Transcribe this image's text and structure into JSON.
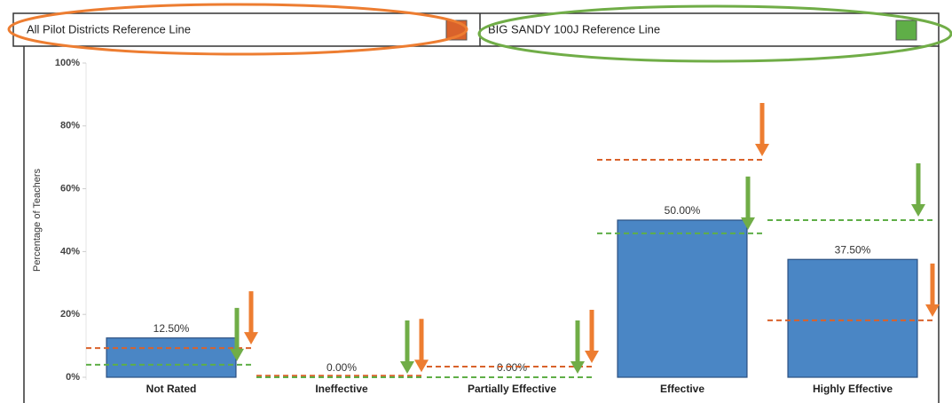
{
  "chart_data": {
    "type": "bar",
    "y_label": "Percentage of Teachers",
    "categories": [
      "Not Rated",
      "Ineffective",
      "Partially Effective",
      "Effective",
      "Highly Effective"
    ],
    "values": [
      12.5,
      0,
      0,
      50,
      37.5
    ],
    "value_labels": [
      "12.50%",
      "0.00%",
      "0.00%",
      "50.00%",
      "37.50%"
    ],
    "color": "#4a86c5",
    "ylim": [
      0,
      100
    ],
    "yticks": [
      {
        "value": 0,
        "label": "0%"
      },
      {
        "value": 20,
        "label": "20%"
      },
      {
        "value": 40,
        "label": "40%"
      },
      {
        "value": 60,
        "label": "60%"
      },
      {
        "value": 80,
        "label": "80%"
      },
      {
        "value": 100,
        "label": "100%"
      }
    ],
    "reference_lines": [
      {
        "name": "All Pilot Districts Reference Line",
        "color": "#d9622b",
        "values": [
          9.3,
          0.5,
          3.4,
          69.2,
          18.1
        ]
      },
      {
        "name": "BIG SANDY 100J Reference Line",
        "color": "#5fae47",
        "values": [
          4,
          0,
          0,
          45.8,
          50
        ]
      }
    ]
  }
}
